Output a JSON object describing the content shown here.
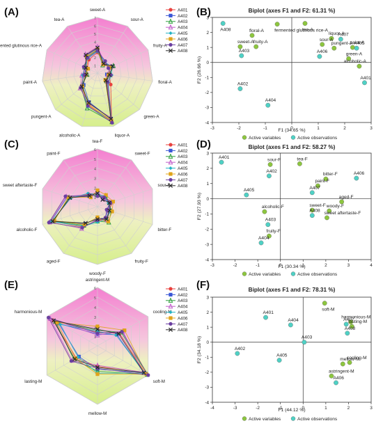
{
  "figure": {
    "panel_labels": [
      "(A)",
      "(B)",
      "(C)",
      "(D)",
      "(E)",
      "(F)"
    ]
  },
  "colors": {
    "A401": "#e8413e",
    "A402": "#3a57d6",
    "A403": "#2e9e3c",
    "A404": "#c05bc9",
    "A405": "#24b3c4",
    "A406": "#e0a41a",
    "A407": "#6b3fa0",
    "A408": "#2b2b2b",
    "active_variables": "#8dc63f",
    "active_observations": "#4fd1c5",
    "radar_top": "#f47fd0",
    "radar_bottom": "#d6ef8c"
  },
  "chart_data": [
    {
      "id": "A",
      "type": "radar",
      "axes": [
        "sweet-A",
        "sour-A",
        "fruity-A",
        "floral-A",
        "green-A",
        "liquor-A",
        "alcoholic-A",
        "pungent-A",
        "paint-A",
        "fermented glutinous rice-A",
        "tea-A"
      ],
      "rmax": 7,
      "tick_labels": [
        "0",
        "1",
        "2",
        "3",
        "4",
        "5",
        "6",
        "7"
      ],
      "legend": [
        "A401",
        "A402",
        "A403",
        "A404",
        "A405",
        "A406",
        "A407",
        "A408"
      ],
      "series": [
        {
          "name": "A401",
          "values": [
            2.6,
            1.5,
            1.6,
            1.5,
            2.2,
            6.3,
            4.2,
            2.6,
            1.8,
            1.4,
            2.0
          ]
        },
        {
          "name": "A402",
          "values": [
            3.1,
            1.4,
            2.0,
            1.2,
            1.4,
            6.0,
            3.8,
            2.3,
            1.6,
            1.6,
            2.6
          ]
        },
        {
          "name": "A403",
          "values": [
            2.9,
            1.2,
            2.2,
            1.6,
            1.5,
            6.4,
            4.6,
            2.7,
            1.3,
            1.8,
            2.4
          ]
        },
        {
          "name": "A404",
          "values": [
            3.3,
            1.6,
            1.8,
            1.3,
            1.6,
            5.8,
            4.0,
            2.9,
            2.0,
            1.5,
            2.8
          ]
        },
        {
          "name": "A405",
          "values": [
            2.7,
            1.7,
            1.9,
            1.8,
            1.8,
            6.1,
            4.4,
            2.4,
            1.9,
            1.7,
            2.2
          ]
        },
        {
          "name": "A406",
          "values": [
            3.0,
            1.3,
            1.7,
            1.4,
            1.3,
            6.2,
            4.1,
            2.5,
            1.5,
            1.3,
            2.5
          ]
        },
        {
          "name": "A407",
          "values": [
            2.8,
            1.8,
            1.5,
            1.7,
            1.7,
            6.5,
            4.3,
            2.8,
            1.7,
            1.9,
            2.3
          ]
        },
        {
          "name": "A408",
          "values": [
            3.2,
            1.4,
            2.1,
            1.5,
            1.4,
            6.0,
            3.9,
            2.6,
            1.4,
            1.6,
            2.7
          ]
        }
      ]
    },
    {
      "id": "B",
      "type": "scatter",
      "title": "Biplot (axes F1 and F2: 61.31 %)",
      "xlabel": "F1 (34.65 %)",
      "ylabel": "F2 (26.66 %)",
      "xlim": [
        -3,
        3
      ],
      "ylim": [
        -4,
        3
      ],
      "xticks": [
        -3,
        -2,
        -1,
        0,
        1,
        2,
        3
      ],
      "yticks": [
        -4,
        -3,
        -2,
        -1,
        0,
        1,
        2,
        3
      ],
      "legend": [
        "Active variables",
        "Active observations"
      ],
      "variables": [
        {
          "label": "tea-A",
          "x": 0.5,
          "y": 2.6
        },
        {
          "label": "fermented glutinous rice-A",
          "x": -0.55,
          "y": 2.55
        },
        {
          "label": "floral-A",
          "x": -1.5,
          "y": 1.8
        },
        {
          "label": "sweet-A",
          "x": -1.95,
          "y": 1.05
        },
        {
          "label": "fruity-A",
          "x": -1.35,
          "y": 1.05
        },
        {
          "label": "liquor-A",
          "x": 1.5,
          "y": 1.6
        },
        {
          "label": "sour-A",
          "x": 1.15,
          "y": 1.2
        },
        {
          "label": "pungent-A",
          "x": 1.6,
          "y": 0.95
        },
        {
          "label": "paint-A",
          "x": 2.3,
          "y": 1.0
        },
        {
          "label": "green-A",
          "x": 2.15,
          "y": 0.25
        },
        {
          "label": "alcoholic-A",
          "x": 2.55,
          "y": -0.25
        }
      ],
      "observations": [
        {
          "label": "A408",
          "x": -2.6,
          "y": 2.6
        },
        {
          "label": "A403",
          "x": -1.9,
          "y": 0.45
        },
        {
          "label": "A402",
          "x": -1.95,
          "y": -1.75
        },
        {
          "label": "A404",
          "x": -0.9,
          "y": -2.85
        },
        {
          "label": "A407",
          "x": 1.85,
          "y": 1.55
        },
        {
          "label": "A405",
          "x": 2.45,
          "y": 0.95
        },
        {
          "label": "A406",
          "x": 1.05,
          "y": 0.4
        },
        {
          "label": "A401",
          "x": 2.75,
          "y": -1.35
        }
      ]
    },
    {
      "id": "C",
      "type": "radar",
      "axes": [
        "tea-F",
        "sweet-F",
        "sour-F",
        "bitter-F",
        "fruity-F",
        "woody-F",
        "aged-F",
        "alcoholic-F",
        "sweet aftertaste-F",
        "paint-F"
      ],
      "rmax": 6,
      "tick_labels": [
        "0",
        "1",
        "2",
        "3",
        "4",
        "5",
        "6"
      ],
      "legend": [
        "A401",
        "A402",
        "A403",
        "A404",
        "A405",
        "A406",
        "A407",
        "A408"
      ],
      "series": [
        {
          "name": "A401",
          "values": [
            1.4,
            1.2,
            1.6,
            1.3,
            1.8,
            1.4,
            2.6,
            4.9,
            3.0,
            1.6
          ]
        },
        {
          "name": "A402",
          "values": [
            1.6,
            1.0,
            1.4,
            1.1,
            1.5,
            1.2,
            2.2,
            5.1,
            3.3,
            1.3
          ]
        },
        {
          "name": "A403",
          "values": [
            1.2,
            1.4,
            1.3,
            1.5,
            2.0,
            1.5,
            2.4,
            4.8,
            3.1,
            1.5
          ]
        },
        {
          "name": "A404",
          "values": [
            1.5,
            1.1,
            1.5,
            1.2,
            1.7,
            1.3,
            2.8,
            5.2,
            3.4,
            1.4
          ]
        },
        {
          "name": "A405",
          "values": [
            1.3,
            1.3,
            1.2,
            1.4,
            1.6,
            1.6,
            2.5,
            5.0,
            2.9,
            1.7
          ]
        },
        {
          "name": "A406",
          "values": [
            1.7,
            1.5,
            1.7,
            1.6,
            1.9,
            1.1,
            2.3,
            4.7,
            3.2,
            1.2
          ]
        },
        {
          "name": "A407",
          "values": [
            1.1,
            1.2,
            1.4,
            1.0,
            1.4,
            1.4,
            2.7,
            5.3,
            3.5,
            1.5
          ]
        },
        {
          "name": "A408",
          "values": [
            1.4,
            0.9,
            1.3,
            1.3,
            1.6,
            1.3,
            2.1,
            4.9,
            3.0,
            1.4
          ]
        }
      ]
    },
    {
      "id": "D",
      "type": "scatter",
      "title": "Biplot (axes F1 and F2: 58.27 %)",
      "xlabel": "F1 (30.34 %)",
      "ylabel": "F2 (27.93 %)",
      "xlim": [
        -3,
        4
      ],
      "ylim": [
        -4,
        3
      ],
      "xticks": [
        -3,
        -2,
        -1,
        0,
        1,
        2,
        3,
        4
      ],
      "yticks": [
        -4,
        -3,
        -2,
        -1,
        0,
        1,
        2,
        3
      ],
      "legend": [
        "Active variables",
        "Active observations"
      ],
      "variables": [
        {
          "label": "tea-F",
          "x": 0.85,
          "y": 2.3
        },
        {
          "label": "sour-F",
          "x": -0.45,
          "y": 2.25
        },
        {
          "label": "bitter-F",
          "x": 2.0,
          "y": 1.3
        },
        {
          "label": "paint-F",
          "x": 1.65,
          "y": 0.85
        },
        {
          "label": "aged-F",
          "x": 2.7,
          "y": -0.2
        },
        {
          "label": "woody-F",
          "x": 2.15,
          "y": -0.8
        },
        {
          "label": "sweet-F",
          "x": 1.4,
          "y": -0.75
        },
        {
          "label": "sweet aftertaste-F",
          "x": 2.05,
          "y": -1.25
        },
        {
          "label": "alcoholic-F",
          "x": -0.7,
          "y": -0.85
        },
        {
          "label": "fruity-F",
          "x": -0.5,
          "y": -2.45
        }
      ],
      "observations": [
        {
          "label": "A401",
          "x": -2.6,
          "y": 2.4
        },
        {
          "label": "A402",
          "x": -0.5,
          "y": 1.5
        },
        {
          "label": "A405",
          "x": -1.5,
          "y": 0.25
        },
        {
          "label": "A407",
          "x": 1.4,
          "y": 0.4
        },
        {
          "label": "A406",
          "x": 3.35,
          "y": 1.35
        },
        {
          "label": "A408",
          "x": 1.4,
          "y": -1.1
        },
        {
          "label": "A403",
          "x": -0.55,
          "y": -1.7
        },
        {
          "label": "A404",
          "x": -0.85,
          "y": -2.9
        }
      ]
    },
    {
      "id": "E",
      "type": "radar",
      "axes": [
        "astringent-M",
        "cooling-M",
        "soft-M",
        "mellow-M",
        "lasting-M",
        "harmonious-M"
      ],
      "rmax": 6,
      "tick_labels": [
        "0",
        "1",
        "2",
        "3",
        "4",
        "5",
        "6"
      ],
      "legend": [
        "A401",
        "A402",
        "A403",
        "A404",
        "A405",
        "A406",
        "A407",
        "A408"
      ],
      "series": [
        {
          "name": "A401",
          "values": [
            1.4,
            2.6,
            5.7,
            2.1,
            2.5,
            5.3
          ]
        },
        {
          "name": "A402",
          "values": [
            1.2,
            2.3,
            5.5,
            2.4,
            2.2,
            4.6
          ]
        },
        {
          "name": "A403",
          "values": [
            1.6,
            2.8,
            5.9,
            2.6,
            2.8,
            5.0
          ]
        },
        {
          "name": "A404",
          "values": [
            1.1,
            3.0,
            5.4,
            2.0,
            3.0,
            5.6
          ]
        },
        {
          "name": "A405",
          "values": [
            1.5,
            2.2,
            5.6,
            2.8,
            2.3,
            4.4
          ]
        },
        {
          "name": "A406",
          "values": [
            2.0,
            3.2,
            5.8,
            2.9,
            2.6,
            4.8
          ]
        },
        {
          "name": "A407",
          "values": [
            1.3,
            2.9,
            6.0,
            2.3,
            3.1,
            5.8
          ]
        },
        {
          "name": "A408",
          "values": [
            1.7,
            2.5,
            5.5,
            2.2,
            2.7,
            5.2
          ]
        }
      ]
    },
    {
      "id": "F",
      "type": "scatter",
      "title": "Biplot (axes F1 and F2: 78.31 %)",
      "xlabel": "F1 (44.12 %)",
      "ylabel": "F2 (34.18 %)",
      "xlim": [
        -4,
        3
      ],
      "ylim": [
        -4,
        3
      ],
      "xticks": [
        -4,
        -3,
        -2,
        -1,
        0,
        1,
        2,
        3
      ],
      "yticks": [
        -4,
        -3,
        -2,
        -1,
        0,
        1,
        2,
        3
      ],
      "legend": [
        "Active variables",
        "Active observations"
      ],
      "variables": [
        {
          "label": "soft-M",
          "x": 0.95,
          "y": 2.6
        },
        {
          "label": "harmonious-M",
          "x": 2.1,
          "y": 1.35
        },
        {
          "label": "lasting-M",
          "x": 2.15,
          "y": 1.05
        },
        {
          "label": "cooling-M",
          "x": 2.05,
          "y": -1.35
        },
        {
          "label": "mellow-M",
          "x": 1.75,
          "y": -1.45
        },
        {
          "label": "astringent-M",
          "x": 1.25,
          "y": -2.25
        }
      ],
      "observations": [
        {
          "label": "A401",
          "x": -1.65,
          "y": 1.65
        },
        {
          "label": "A404",
          "x": -0.55,
          "y": 1.15
        },
        {
          "label": "A407",
          "x": 1.9,
          "y": 1.2
        },
        {
          "label": "A408",
          "x": 1.95,
          "y": 0.6
        },
        {
          "label": "A403",
          "x": 0.05,
          "y": 0.0
        },
        {
          "label": "A402",
          "x": -2.9,
          "y": -0.75
        },
        {
          "label": "A405",
          "x": -1.05,
          "y": -1.2
        },
        {
          "label": "A406",
          "x": 1.45,
          "y": -2.7
        }
      ]
    }
  ]
}
